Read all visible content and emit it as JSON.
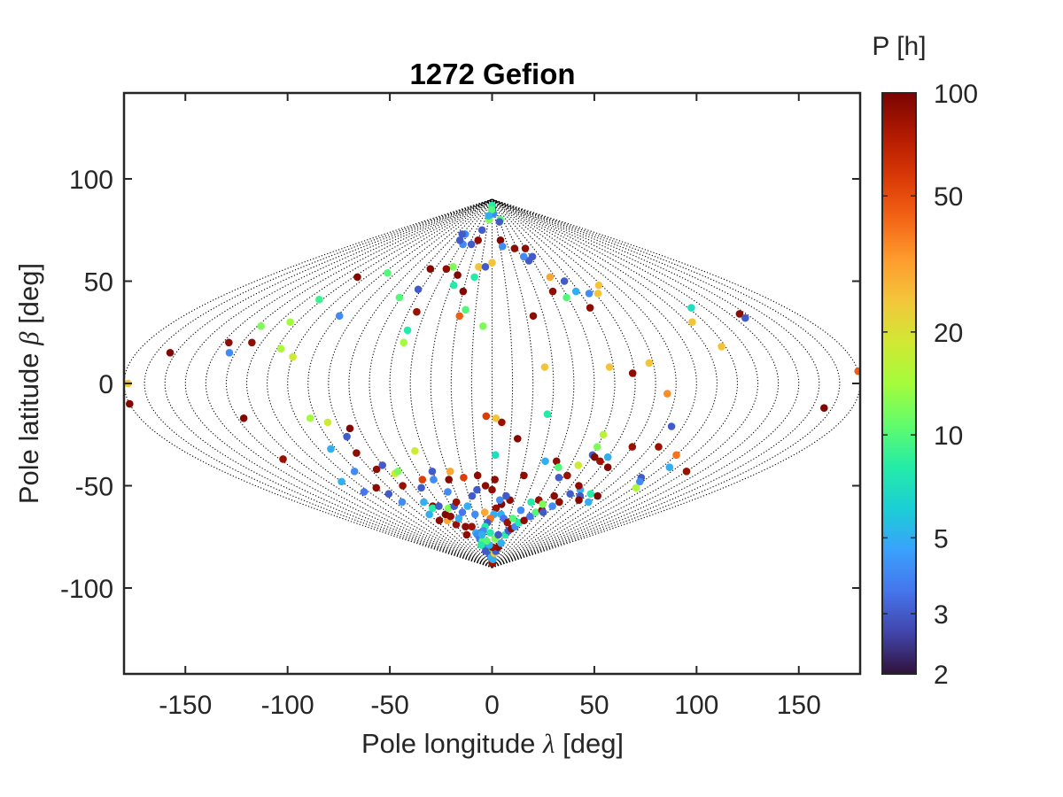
{
  "chart_data": {
    "type": "scatter",
    "title": "1272 Gefion",
    "xlabel": "Pole longitude λ [deg]",
    "ylabel": "Pole latitude β [deg]",
    "xlabel_parts": {
      "before": "Pole longitude ",
      "symbol": "λ",
      "after": " [deg]"
    },
    "ylabel_parts": {
      "before": "Pole latitude ",
      "symbol": "β",
      "after": " [deg]"
    },
    "xlim": [
      -180,
      180
    ],
    "ylim": [
      -142,
      142
    ],
    "xticks": [
      -150,
      -100,
      -50,
      0,
      50,
      100,
      150
    ],
    "yticks": [
      -100,
      -50,
      0,
      50,
      100
    ],
    "grid": "sinusoidal projection graticule (dotted meridians every 10°)",
    "colorbar": {
      "label": "P [h]",
      "scale": "log",
      "range": [
        2,
        100
      ],
      "ticks": [
        2,
        3,
        5,
        10,
        20,
        50,
        100
      ],
      "colormap": [
        "#30123b",
        "#4145ab",
        "#4675ed",
        "#39a2fc",
        "#1bcfd4",
        "#24eca6",
        "#61fc6c",
        "#a4fc3b",
        "#d1e834",
        "#f3c63a",
        "#fe9b2d",
        "#f36315",
        "#d93806",
        "#b11901",
        "#7a0402"
      ]
    },
    "points": [
      {
        "lon": -178,
        "lat": 0,
        "p": 25
      },
      {
        "lon": -180,
        "lat": -10,
        "p": 95
      },
      {
        "lon": -163,
        "lat": 15,
        "p": 95
      },
      {
        "lon": -137,
        "lat": 20,
        "p": 90
      },
      {
        "lon": -133,
        "lat": 15,
        "p": 4
      },
      {
        "lon": -128,
        "lat": 28,
        "p": 12
      },
      {
        "lon": -125,
        "lat": 20,
        "p": 90
      },
      {
        "lon": -127,
        "lat": -17,
        "p": 95
      },
      {
        "lon": -128,
        "lat": -37,
        "p": 85
      },
      {
        "lon": -112,
        "lat": 41,
        "p": 9
      },
      {
        "lon": -114,
        "lat": 30,
        "p": 14
      },
      {
        "lon": -108,
        "lat": 17,
        "p": 15
      },
      {
        "lon": -107,
        "lat": 52,
        "p": 95
      },
      {
        "lon": -100,
        "lat": 13,
        "p": 18
      },
      {
        "lon": -110,
        "lat": -48,
        "p": 5
      },
      {
        "lon": -104,
        "lat": -53,
        "p": 3.5
      },
      {
        "lon": -93,
        "lat": -17,
        "p": 14
      },
      {
        "lon": -93,
        "lat": -32,
        "p": 5
      },
      {
        "lon": -92,
        "lat": -43,
        "p": 4
      },
      {
        "lon": -90,
        "lat": -51,
        "p": 90
      },
      {
        "lon": -89,
        "lat": 33,
        "p": 4
      },
      {
        "lon": -85,
        "lat": -19,
        "p": 18
      },
      {
        "lon": -86,
        "lat": -54,
        "p": 3
      },
      {
        "lon": -83,
        "lat": -58,
        "p": 4
      },
      {
        "lon": -87,
        "lat": 54,
        "p": 10
      },
      {
        "lon": -79,
        "lat": -26,
        "p": 3
      },
      {
        "lon": -75,
        "lat": -22,
        "p": 95
      },
      {
        "lon": -80,
        "lat": -34,
        "p": 90
      },
      {
        "lon": -76,
        "lat": -42,
        "p": 90
      },
      {
        "lon": -70,
        "lat": -40,
        "p": 3
      },
      {
        "lon": -66,
        "lat": -44,
        "p": 18
      },
      {
        "lon": -63,
        "lat": -43,
        "p": 12
      },
      {
        "lon": -68,
        "lat": -50,
        "p": 85
      },
      {
        "lon": -63,
        "lat": -58,
        "p": 5
      },
      {
        "lon": -58,
        "lat": -60,
        "p": 90
      },
      {
        "lon": -70,
        "lat": -64,
        "p": 5
      },
      {
        "lon": -66,
        "lat": -67,
        "p": 90
      },
      {
        "lon": -60,
        "lat": -61,
        "p": 8
      },
      {
        "lon": -56,
        "lat": -67,
        "p": 30
      },
      {
        "lon": -52,
        "lat": -60,
        "p": 3
      },
      {
        "lon": -52,
        "lat": -64,
        "p": 95
      },
      {
        "lon": -49,
        "lat": -69,
        "p": 85
      },
      {
        "lon": -48,
        "lat": -65,
        "p": 90
      },
      {
        "lon": -44,
        "lat": -61,
        "p": 12
      },
      {
        "lon": -45,
        "lat": -74,
        "p": 90
      },
      {
        "lon": -40,
        "lat": -66,
        "p": 5
      },
      {
        "lon": -38,
        "lat": -70,
        "p": 90
      },
      {
        "lon": -37,
        "lat": -60,
        "p": 3
      },
      {
        "lon": -32,
        "lat": -63,
        "p": 3.5
      },
      {
        "lon": -29,
        "lat": -70,
        "p": 85
      },
      {
        "lon": -27,
        "lat": -73,
        "p": 5
      },
      {
        "lon": -26,
        "lat": -74,
        "p": 4
      },
      {
        "lon": -25,
        "lat": -76,
        "p": 3.5
      },
      {
        "lon": -21,
        "lat": -77,
        "p": 10
      },
      {
        "lon": -17,
        "lat": -79,
        "p": 90
      },
      {
        "lon": -15,
        "lat": -80,
        "p": 4
      },
      {
        "lon": -12,
        "lat": -82,
        "p": 8
      },
      {
        "lon": -9,
        "lat": -84,
        "p": 3
      },
      {
        "lon": -5,
        "lat": -85,
        "p": 5
      },
      {
        "lon": -2,
        "lat": -87,
        "p": 4
      },
      {
        "lon": 0,
        "lat": -88,
        "p": 6
      },
      {
        "lon": 4,
        "lat": -88,
        "p": 85
      },
      {
        "lon": 6,
        "lat": -86,
        "p": 5
      },
      {
        "lon": 9,
        "lat": -83,
        "p": 25
      },
      {
        "lon": 13,
        "lat": -82,
        "p": 3
      },
      {
        "lon": 17,
        "lat": -80,
        "p": 90
      },
      {
        "lon": 21,
        "lat": -78,
        "p": 5
      },
      {
        "lon": 23,
        "lat": -74,
        "p": 8
      },
      {
        "lon": 26,
        "lat": -72,
        "p": 3
      },
      {
        "lon": 29,
        "lat": -71,
        "p": 90
      },
      {
        "lon": 33,
        "lat": -70,
        "p": 4
      },
      {
        "lon": 35,
        "lat": -68,
        "p": 8
      },
      {
        "lon": 40,
        "lat": -67,
        "p": 90
      },
      {
        "lon": 44,
        "lat": -65,
        "p": 3.5
      },
      {
        "lon": 47,
        "lat": -63,
        "p": 10
      },
      {
        "lon": 52,
        "lat": -62,
        "p": 90
      },
      {
        "lon": 55,
        "lat": -63,
        "p": 3
      },
      {
        "lon": 59,
        "lat": -60,
        "p": 4
      },
      {
        "lon": 62,
        "lat": -58,
        "p": 90
      },
      {
        "lon": 65,
        "lat": -54,
        "p": 3
      },
      {
        "lon": 70,
        "lat": -52,
        "p": 5
      },
      {
        "lon": 75,
        "lat": -55,
        "p": 3
      },
      {
        "lon": 78,
        "lat": -57,
        "p": 95
      },
      {
        "lon": 82,
        "lat": -54,
        "p": 8
      },
      {
        "lon": 89,
        "lat": -58,
        "p": 5
      },
      {
        "lon": 90,
        "lat": -55,
        "p": 95
      },
      {
        "lon": 94,
        "lat": -21,
        "p": 3
      },
      {
        "lon": 95,
        "lat": -31,
        "p": 85
      },
      {
        "lon": 105,
        "lat": -46,
        "p": 3
      },
      {
        "lon": 108,
        "lat": -48,
        "p": 4
      },
      {
        "lon": 112,
        "lat": -51,
        "p": 15
      },
      {
        "lon": 110,
        "lat": -35,
        "p": 40
      },
      {
        "lon": 115,
        "lat": -41,
        "p": 5
      },
      {
        "lon": 130,
        "lat": -43,
        "p": 85
      },
      {
        "lon": 118,
        "lat": 18,
        "p": 25
      },
      {
        "lon": 113,
        "lat": 30,
        "p": 25
      },
      {
        "lon": 122,
        "lat": 37,
        "p": 7
      },
      {
        "lon": 146,
        "lat": 34,
        "p": 90
      },
      {
        "lon": 146,
        "lat": 32,
        "p": 3
      },
      {
        "lon": 166,
        "lat": -12,
        "p": 95
      },
      {
        "lon": 180,
        "lat": 6,
        "p": 45
      },
      {
        "lon": 86,
        "lat": -5,
        "p": 35
      },
      {
        "lon": 78,
        "lat": 10,
        "p": 25
      },
      {
        "lon": 69,
        "lat": 5,
        "p": 90
      },
      {
        "lon": 58,
        "lat": 8,
        "p": 25
      },
      {
        "lon": 78,
        "lat": 48,
        "p": 25
      },
      {
        "lon": 72,
        "lat": 44,
        "p": 25
      },
      {
        "lon": 66,
        "lat": 44,
        "p": 4
      },
      {
        "lon": 58,
        "lat": 45,
        "p": 5
      },
      {
        "lon": 55,
        "lat": 50,
        "p": 3
      },
      {
        "lon": 60,
        "lat": 37,
        "p": 90
      },
      {
        "lon": 49,
        "lat": 42,
        "p": 10
      },
      {
        "lon": 46,
        "lat": 52,
        "p": 30
      },
      {
        "lon": 42,
        "lat": 45,
        "p": 90
      },
      {
        "lon": 40,
        "lat": 66,
        "p": 90
      },
      {
        "lon": 42,
        "lat": 62,
        "p": 3
      },
      {
        "lon": 36,
        "lat": 60,
        "p": 3
      },
      {
        "lon": 33,
        "lat": 62,
        "p": 4
      },
      {
        "lon": 27,
        "lat": 66,
        "p": 90
      },
      {
        "lon": 23,
        "lat": 80,
        "p": 10
      },
      {
        "lon": 19,
        "lat": 79,
        "p": 3
      },
      {
        "lon": 12,
        "lat": 70,
        "p": 95
      },
      {
        "lon": 13,
        "lat": 67,
        "p": 4
      },
      {
        "lon": 6,
        "lat": 83,
        "p": 4
      },
      {
        "lon": 2,
        "lat": 86,
        "p": 95
      },
      {
        "lon": 0,
        "lat": 87,
        "p": 8
      },
      {
        "lon": -2,
        "lat": 85,
        "p": 10
      },
      {
        "lon": -8,
        "lat": 80,
        "p": 12
      },
      {
        "lon": -12,
        "lat": 82,
        "p": 5
      },
      {
        "lon": -19,
        "lat": 75,
        "p": 3
      },
      {
        "lon": -20,
        "lat": 70,
        "p": 90
      },
      {
        "lon": -27,
        "lat": 68,
        "p": 3
      },
      {
        "lon": -38,
        "lat": 68,
        "p": 4
      },
      {
        "lon": -35,
        "lat": 57,
        "p": 12
      },
      {
        "lon": -40,
        "lat": 56,
        "p": 90
      },
      {
        "lon": -46,
        "lat": 70,
        "p": 3
      },
      {
        "lon": -45,
        "lat": 73,
        "p": 4
      },
      {
        "lon": -50,
        "lat": 73,
        "p": 3
      },
      {
        "lon": -54,
        "lat": 56,
        "p": 95
      },
      {
        "lon": -61,
        "lat": 42,
        "p": 10
      },
      {
        "lon": -52,
        "lat": 46,
        "p": 3
      },
      {
        "lon": -45,
        "lat": 35,
        "p": 85
      },
      {
        "lon": -46,
        "lat": 26,
        "p": 8
      },
      {
        "lon": -46,
        "lat": 20,
        "p": 14
      },
      {
        "lon": -28,
        "lat": 53,
        "p": 95
      },
      {
        "lon": -28,
        "lat": 48,
        "p": 8
      },
      {
        "lon": -20,
        "lat": 45,
        "p": 95
      },
      {
        "lon": -14,
        "lat": 52,
        "p": 8
      },
      {
        "lon": -16,
        "lat": 36,
        "p": 10
      },
      {
        "lon": -19,
        "lat": 33,
        "p": 45
      },
      {
        "lon": -12,
        "lat": 57,
        "p": 25
      },
      {
        "lon": -6,
        "lat": 57,
        "p": 3
      },
      {
        "lon": 0,
        "lat": 59,
        "p": 25
      },
      {
        "lon": -5,
        "lat": 28,
        "p": 12
      },
      {
        "lon": 24,
        "lat": 33,
        "p": 90
      },
      {
        "lon": 26,
        "lat": 8,
        "p": 25
      },
      {
        "lon": 28,
        "lat": -15,
        "p": 8
      },
      {
        "lon": 22,
        "lat": -45,
        "p": 90
      },
      {
        "lon": 14,
        "lat": -27,
        "p": 95
      },
      {
        "lon": 5,
        "lat": -19,
        "p": 85
      },
      {
        "lon": 2,
        "lat": -17,
        "p": 25
      },
      {
        "lon": -3,
        "lat": -16,
        "p": 55
      },
      {
        "lon": 2,
        "lat": -35,
        "p": 7
      },
      {
        "lon": 2,
        "lat": -47,
        "p": 90
      },
      {
        "lon": 0,
        "lat": -52,
        "p": 90
      },
      {
        "lon": -5,
        "lat": -50,
        "p": 90
      },
      {
        "lon": -10,
        "lat": -45,
        "p": 90
      },
      {
        "lon": -12,
        "lat": -52,
        "p": 3
      },
      {
        "lon": -17,
        "lat": -55,
        "p": 3
      },
      {
        "lon": -20,
        "lat": -46,
        "p": 55
      },
      {
        "lon": -28,
        "lat": -43,
        "p": 30
      },
      {
        "lon": -31,
        "lat": -47,
        "p": 95
      },
      {
        "lon": -40,
        "lat": -43,
        "p": 3
      },
      {
        "lon": -42,
        "lat": -47,
        "p": 4
      },
      {
        "lon": -45,
        "lat": -33,
        "p": 18
      },
      {
        "lon": -50,
        "lat": -47,
        "p": 55
      },
      {
        "lon": -55,
        "lat": -51,
        "p": 3
      },
      {
        "lon": 33,
        "lat": -38,
        "p": 5
      },
      {
        "lon": 40,
        "lat": -38,
        "p": 90
      },
      {
        "lon": 43,
        "lat": -41,
        "p": 10
      },
      {
        "lon": 47,
        "lat": -46,
        "p": 3
      },
      {
        "lon": 52,
        "lat": -45,
        "p": 85
      },
      {
        "lon": 55,
        "lat": -40,
        "p": 18
      },
      {
        "lon": 60,
        "lat": -35,
        "p": 3
      },
      {
        "lon": 62,
        "lat": -36,
        "p": 95
      },
      {
        "lon": 67,
        "lat": -38,
        "p": 85
      },
      {
        "lon": 70,
        "lat": -36,
        "p": 5
      },
      {
        "lon": 75,
        "lat": -41,
        "p": 95
      },
      {
        "lon": 80,
        "lat": -31,
        "p": 85
      },
      {
        "lon": 60,
        "lat": -31,
        "p": 12
      },
      {
        "lon": 60,
        "lat": -25,
        "p": 16
      },
      {
        "lon": 66,
        "lat": -50,
        "p": 90
      },
      {
        "lon": 16,
        "lat": -57,
        "p": 90
      },
      {
        "lon": 12,
        "lat": -55,
        "p": 3
      },
      {
        "lon": 9,
        "lat": -59,
        "p": 95
      },
      {
        "lon": 7,
        "lat": -57,
        "p": 4
      },
      {
        "lon": 4,
        "lat": -61,
        "p": 85
      },
      {
        "lon": 2,
        "lat": -64,
        "p": 5
      },
      {
        "lon": -2,
        "lat": -66,
        "p": 40
      },
      {
        "lon": -6,
        "lat": -68,
        "p": 3
      },
      {
        "lon": -10,
        "lat": -70,
        "p": 8
      },
      {
        "lon": -14,
        "lat": -72,
        "p": 4
      },
      {
        "lon": 10,
        "lat": -64,
        "p": 5
      },
      {
        "lon": 14,
        "lat": -66,
        "p": 3.5
      },
      {
        "lon": 20,
        "lat": -68,
        "p": 85
      },
      {
        "lon": 25,
        "lat": -66,
        "p": 10
      },
      {
        "lon": 30,
        "lat": -62,
        "p": 4
      },
      {
        "lon": 36,
        "lat": -58,
        "p": 8
      },
      {
        "lon": 42,
        "lat": -57,
        "p": 85
      },
      {
        "lon": 48,
        "lat": -59,
        "p": 12
      },
      {
        "lon": 53,
        "lat": -55,
        "p": 90
      },
      {
        "lon": -33,
        "lat": -58,
        "p": 85
      },
      {
        "lon": -36,
        "lat": -53,
        "p": 4
      },
      {
        "lon": -24,
        "lat": -60,
        "p": 5
      },
      {
        "lon": -19,
        "lat": -64,
        "p": 4
      },
      {
        "lon": -8,
        "lat": -63,
        "p": 30
      },
      {
        "lon": -3,
        "lat": -73,
        "p": 8
      },
      {
        "lon": 6,
        "lat": -76,
        "p": 12
      },
      {
        "lon": 1,
        "lat": -80,
        "p": 85
      },
      {
        "lon": -7,
        "lat": -79,
        "p": 5
      },
      {
        "lon": 11,
        "lat": -74,
        "p": 3
      },
      {
        "lon": -12,
        "lat": -77,
        "p": 10
      },
      {
        "lon": -18,
        "lat": -74,
        "p": 5
      },
      {
        "lon": -28,
        "lat": -79,
        "p": 8
      },
      {
        "lon": -23,
        "lat": -82,
        "p": 3
      }
    ]
  }
}
